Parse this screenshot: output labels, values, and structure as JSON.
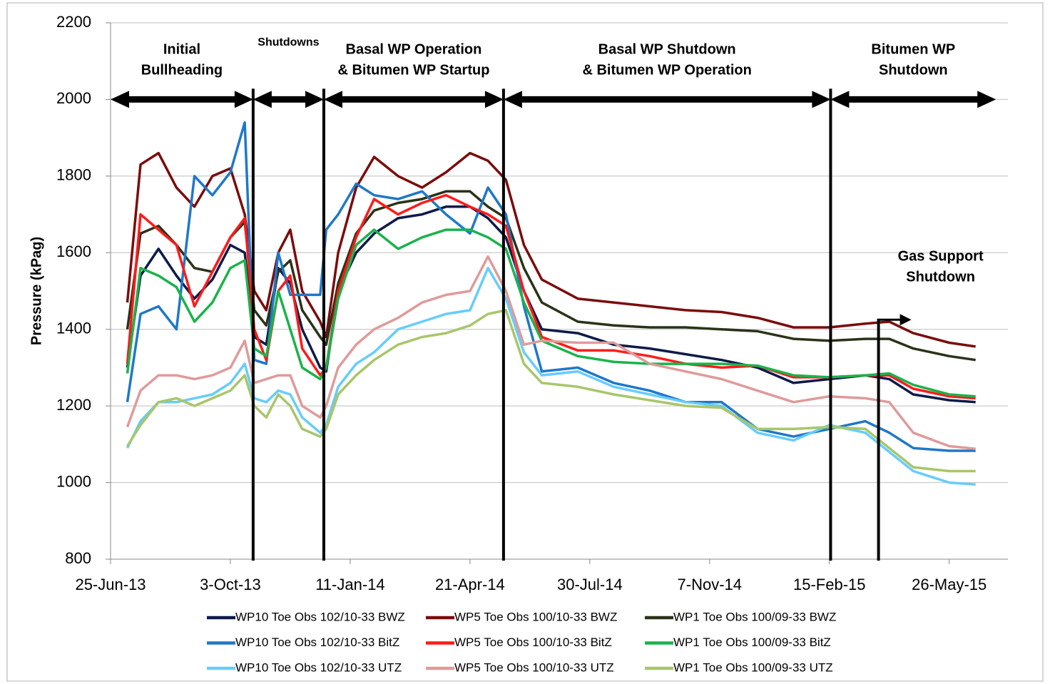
{
  "chart_data": {
    "type": "line",
    "y_label": "Pressure (kPag)",
    "xlim": [
      "2013-06-25",
      "2015-07-14"
    ],
    "xticks": [
      {
        "value": "2013-06-25",
        "label": "25-Jun-13"
      },
      {
        "value": "2013-10-03",
        "label": "3-Oct-13"
      },
      {
        "value": "2014-01-11",
        "label": "11-Jan-14"
      },
      {
        "value": "2014-04-21",
        "label": "21-Apr-14"
      },
      {
        "value": "2014-07-30",
        "label": "30-Jul-14"
      },
      {
        "value": "2014-11-07",
        "label": "7-Nov-14"
      },
      {
        "value": "2015-02-15",
        "label": "15-Feb-15"
      },
      {
        "value": "2015-05-26",
        "label": "26-May-15"
      }
    ],
    "ylim": [
      800,
      2200
    ],
    "yticks": [
      800,
      1000,
      1200,
      1400,
      1600,
      1800,
      2000,
      2200
    ],
    "grid": true,
    "x": [
      "2013-07-09",
      "2013-07-20",
      "2013-08-04",
      "2013-08-19",
      "2013-09-03",
      "2013-09-18",
      "2013-10-03",
      "2013-10-15",
      "2013-10-23",
      "2013-11-02",
      "2013-11-12",
      "2013-11-22",
      "2013-12-02",
      "2013-12-17",
      "2013-12-22",
      "2014-01-01",
      "2014-01-16",
      "2014-01-31",
      "2014-02-20",
      "2014-03-12",
      "2014-04-01",
      "2014-04-21",
      "2014-05-06",
      "2014-05-21",
      "2014-06-05",
      "2014-06-20",
      "2014-07-20",
      "2014-08-19",
      "2014-09-18",
      "2014-10-18",
      "2014-11-17",
      "2014-12-17",
      "2015-01-16",
      "2015-02-15",
      "2015-03-17",
      "2015-04-06",
      "2015-04-26",
      "2015-05-26",
      "2015-06-17"
    ],
    "series": [
      {
        "name": "WP10 Toe Obs 102/10-33 BWZ",
        "color": "#0d1b4a",
        "values": [
          1300,
          1540,
          1610,
          1540,
          1480,
          1530,
          1620,
          1600,
          1380,
          1360,
          1560,
          1520,
          1400,
          1300,
          1290,
          1500,
          1600,
          1650,
          1690,
          1700,
          1720,
          1720,
          1690,
          1640,
          1500,
          1400,
          1390,
          1360,
          1350,
          1335,
          1320,
          1300,
          1260,
          1270,
          1280,
          1270,
          1230,
          1215,
          1210
        ]
      },
      {
        "name": "WP5 Toe Obs 100/10-33 BWZ",
        "color": "#7b0c0c",
        "values": [
          1470,
          1830,
          1860,
          1770,
          1720,
          1800,
          1820,
          1700,
          1500,
          1450,
          1600,
          1660,
          1500,
          1420,
          1380,
          1600,
          1770,
          1850,
          1800,
          1770,
          1810,
          1860,
          1840,
          1790,
          1620,
          1530,
          1480,
          1470,
          1460,
          1450,
          1445,
          1430,
          1405,
          1405,
          1415,
          1420,
          1390,
          1365,
          1355
        ]
      },
      {
        "name": "WP1 Toe Obs 100/09-33 BWZ",
        "color": "#2a3318",
        "values": [
          1400,
          1650,
          1670,
          1620,
          1560,
          1550,
          1640,
          1680,
          1450,
          1410,
          1550,
          1580,
          1450,
          1380,
          1360,
          1520,
          1650,
          1710,
          1730,
          1740,
          1760,
          1760,
          1720,
          1690,
          1560,
          1470,
          1420,
          1410,
          1405,
          1405,
          1400,
          1395,
          1375,
          1370,
          1375,
          1375,
          1350,
          1330,
          1320
        ]
      },
      {
        "name": "WP10 Toe Obs 102/10-33 BitZ",
        "color": "#1f78c8",
        "values": [
          1210,
          1440,
          1460,
          1400,
          1800,
          1750,
          1810,
          1940,
          1320,
          1310,
          1600,
          1490,
          1490,
          1490,
          1660,
          1700,
          1780,
          1750,
          1740,
          1760,
          1700,
          1650,
          1770,
          1700,
          1460,
          1290,
          1300,
          1260,
          1240,
          1210,
          1210,
          1140,
          1120,
          1140,
          1160,
          1130,
          1090,
          1083,
          1083
        ]
      },
      {
        "name": "WP5 Toe Obs 100/10-33 BitZ",
        "color": "#ff1a1a",
        "values": [
          1310,
          1700,
          1660,
          1620,
          1460,
          1550,
          1640,
          1690,
          1400,
          1320,
          1500,
          1540,
          1350,
          1280,
          1300,
          1500,
          1640,
          1740,
          1700,
          1730,
          1750,
          1720,
          1700,
          1670,
          1500,
          1380,
          1345,
          1345,
          1330,
          1310,
          1300,
          1305,
          1275,
          1275,
          1280,
          1280,
          1245,
          1225,
          1220
        ]
      },
      {
        "name": "WP1 Toe Obs 100/09-33 BitZ",
        "color": "#1ab34a",
        "values": [
          1285,
          1560,
          1540,
          1510,
          1420,
          1470,
          1560,
          1580,
          1350,
          1330,
          1500,
          1400,
          1300,
          1270,
          1300,
          1480,
          1620,
          1660,
          1610,
          1640,
          1660,
          1660,
          1640,
          1610,
          1470,
          1370,
          1330,
          1315,
          1310,
          1310,
          1310,
          1305,
          1280,
          1275,
          1280,
          1285,
          1255,
          1230,
          1225
        ]
      },
      {
        "name": "WP10 Toe Obs 102/10-33 UTZ",
        "color": "#66ccff",
        "values": [
          1090,
          1160,
          1210,
          1210,
          1220,
          1230,
          1260,
          1310,
          1220,
          1210,
          1240,
          1230,
          1170,
          1130,
          1150,
          1250,
          1310,
          1340,
          1400,
          1420,
          1440,
          1450,
          1560,
          1480,
          1340,
          1280,
          1290,
          1250,
          1230,
          1210,
          1200,
          1130,
          1110,
          1150,
          1130,
          1080,
          1030,
          1000,
          995
        ]
      },
      {
        "name": "WP5 Toe Obs 100/10-33 UTZ",
        "color": "#e09a9a",
        "values": [
          1145,
          1240,
          1280,
          1280,
          1270,
          1280,
          1300,
          1370,
          1260,
          1270,
          1280,
          1280,
          1200,
          1170,
          1200,
          1300,
          1360,
          1400,
          1430,
          1470,
          1490,
          1500,
          1590,
          1500,
          1360,
          1370,
          1365,
          1365,
          1310,
          1290,
          1270,
          1240,
          1210,
          1225,
          1220,
          1210,
          1130,
          1095,
          1088
        ]
      },
      {
        "name": "WP1 Toe Obs 100/09-33 UTZ",
        "color": "#a8c66a",
        "values": [
          1095,
          1150,
          1210,
          1220,
          1200,
          1220,
          1240,
          1280,
          1200,
          1170,
          1230,
          1200,
          1140,
          1120,
          1140,
          1230,
          1280,
          1320,
          1360,
          1380,
          1390,
          1410,
          1440,
          1450,
          1310,
          1260,
          1250,
          1230,
          1215,
          1200,
          1195,
          1140,
          1140,
          1145,
          1140,
          1090,
          1040,
          1030,
          1030
        ]
      }
    ],
    "phases": [
      {
        "label": [
          "Initial",
          "Bullheading"
        ],
        "start": "2013-06-25",
        "end": "2013-10-22"
      },
      {
        "label": [
          "Shutdowns"
        ],
        "start": "2013-10-22",
        "end": "2013-12-20"
      },
      {
        "label": [
          "Basal WP Operation",
          "& Bitumen WP Startup"
        ],
        "start": "2013-12-20",
        "end": "2014-05-19"
      },
      {
        "label": [
          "Basal WP Shutdown",
          "& Bitumen WP Operation"
        ],
        "start": "2014-05-19",
        "end": "2015-02-16"
      },
      {
        "label": [
          "Bitumen WP",
          "Shutdown"
        ],
        "start": "2015-02-16",
        "end": "2015-07-04"
      }
    ],
    "phase_level": 2000,
    "event": {
      "label": [
        "Gas Support",
        "Shutdown"
      ],
      "x": "2015-03-28",
      "y": 1425
    }
  }
}
